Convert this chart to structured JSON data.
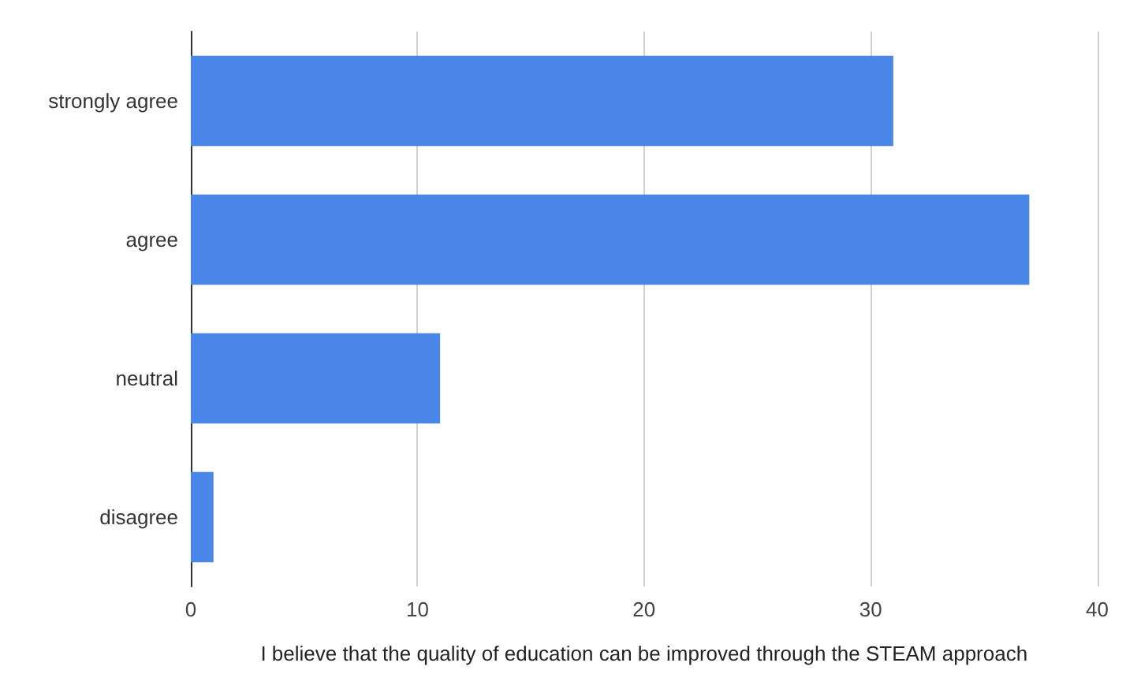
{
  "chart_data": {
    "type": "bar",
    "orientation": "horizontal",
    "xlabel": "I believe that the quality of education can be improved through the STEAM approach",
    "categories": [
      "strongly agree",
      "agree",
      "neutral",
      "disagree"
    ],
    "values": [
      31,
      37,
      11,
      1
    ],
    "color": "#4a86e8",
    "xlim": [
      0,
      40
    ],
    "xticks": [
      0,
      10,
      20,
      30,
      40
    ],
    "grid": "x"
  }
}
